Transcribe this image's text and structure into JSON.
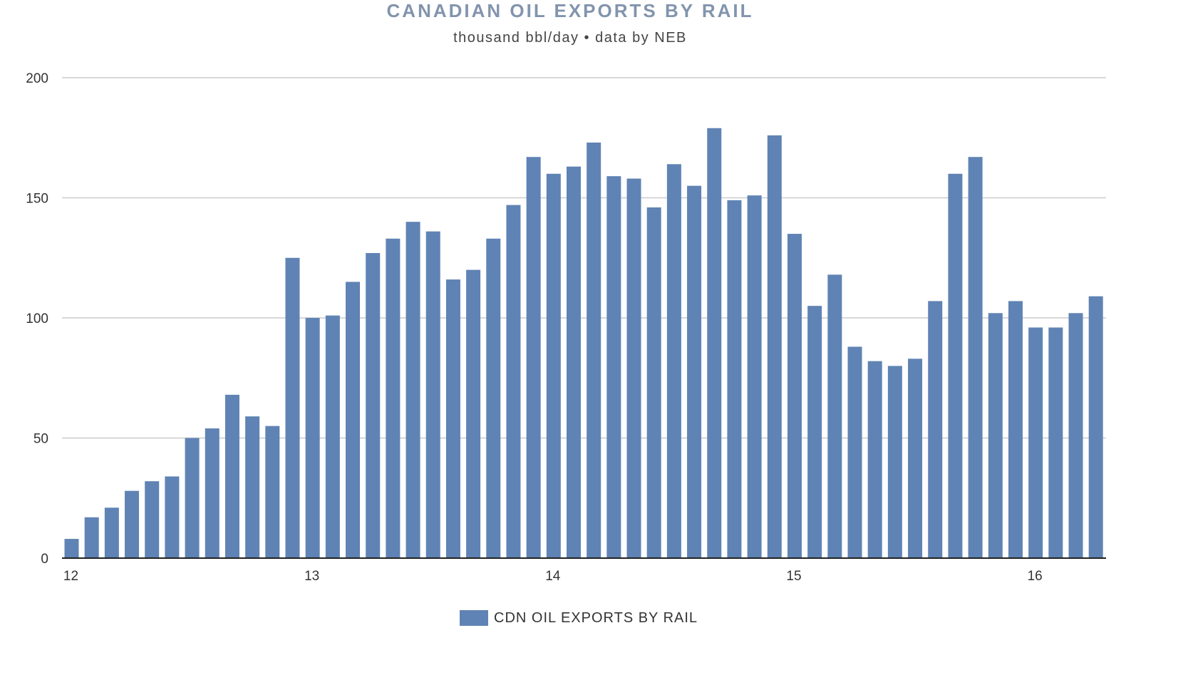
{
  "chart_data": {
    "type": "bar",
    "title": "CANADIAN OIL EXPORTS BY RAIL",
    "subtitle": "thousand bbl/day • data by NEB",
    "xlabel": "",
    "ylabel": "",
    "ylim": [
      0,
      200
    ],
    "yticks": [
      0,
      50,
      100,
      150,
      200
    ],
    "grid": true,
    "legend_position": "bottom",
    "bar_color": "#5f83b4",
    "title_color": "#8294ad",
    "xtick_labels": [
      {
        "label": "12",
        "index": 0
      },
      {
        "label": "13",
        "index": 12
      },
      {
        "label": "14",
        "index": 24
      },
      {
        "label": "15",
        "index": 36
      },
      {
        "label": "16",
        "index": 48
      }
    ],
    "series": [
      {
        "name": "CDN OIL EXPORTS BY RAIL",
        "values": [
          8,
          17,
          21,
          28,
          32,
          34,
          50,
          54,
          68,
          59,
          55,
          125,
          100,
          101,
          115,
          127,
          133,
          140,
          136,
          116,
          120,
          133,
          147,
          167,
          160,
          163,
          173,
          159,
          158,
          146,
          164,
          155,
          179,
          149,
          151,
          176,
          135,
          105,
          118,
          88,
          82,
          80,
          83,
          107,
          160,
          167,
          102,
          107,
          96,
          96,
          102,
          109
        ]
      }
    ]
  }
}
